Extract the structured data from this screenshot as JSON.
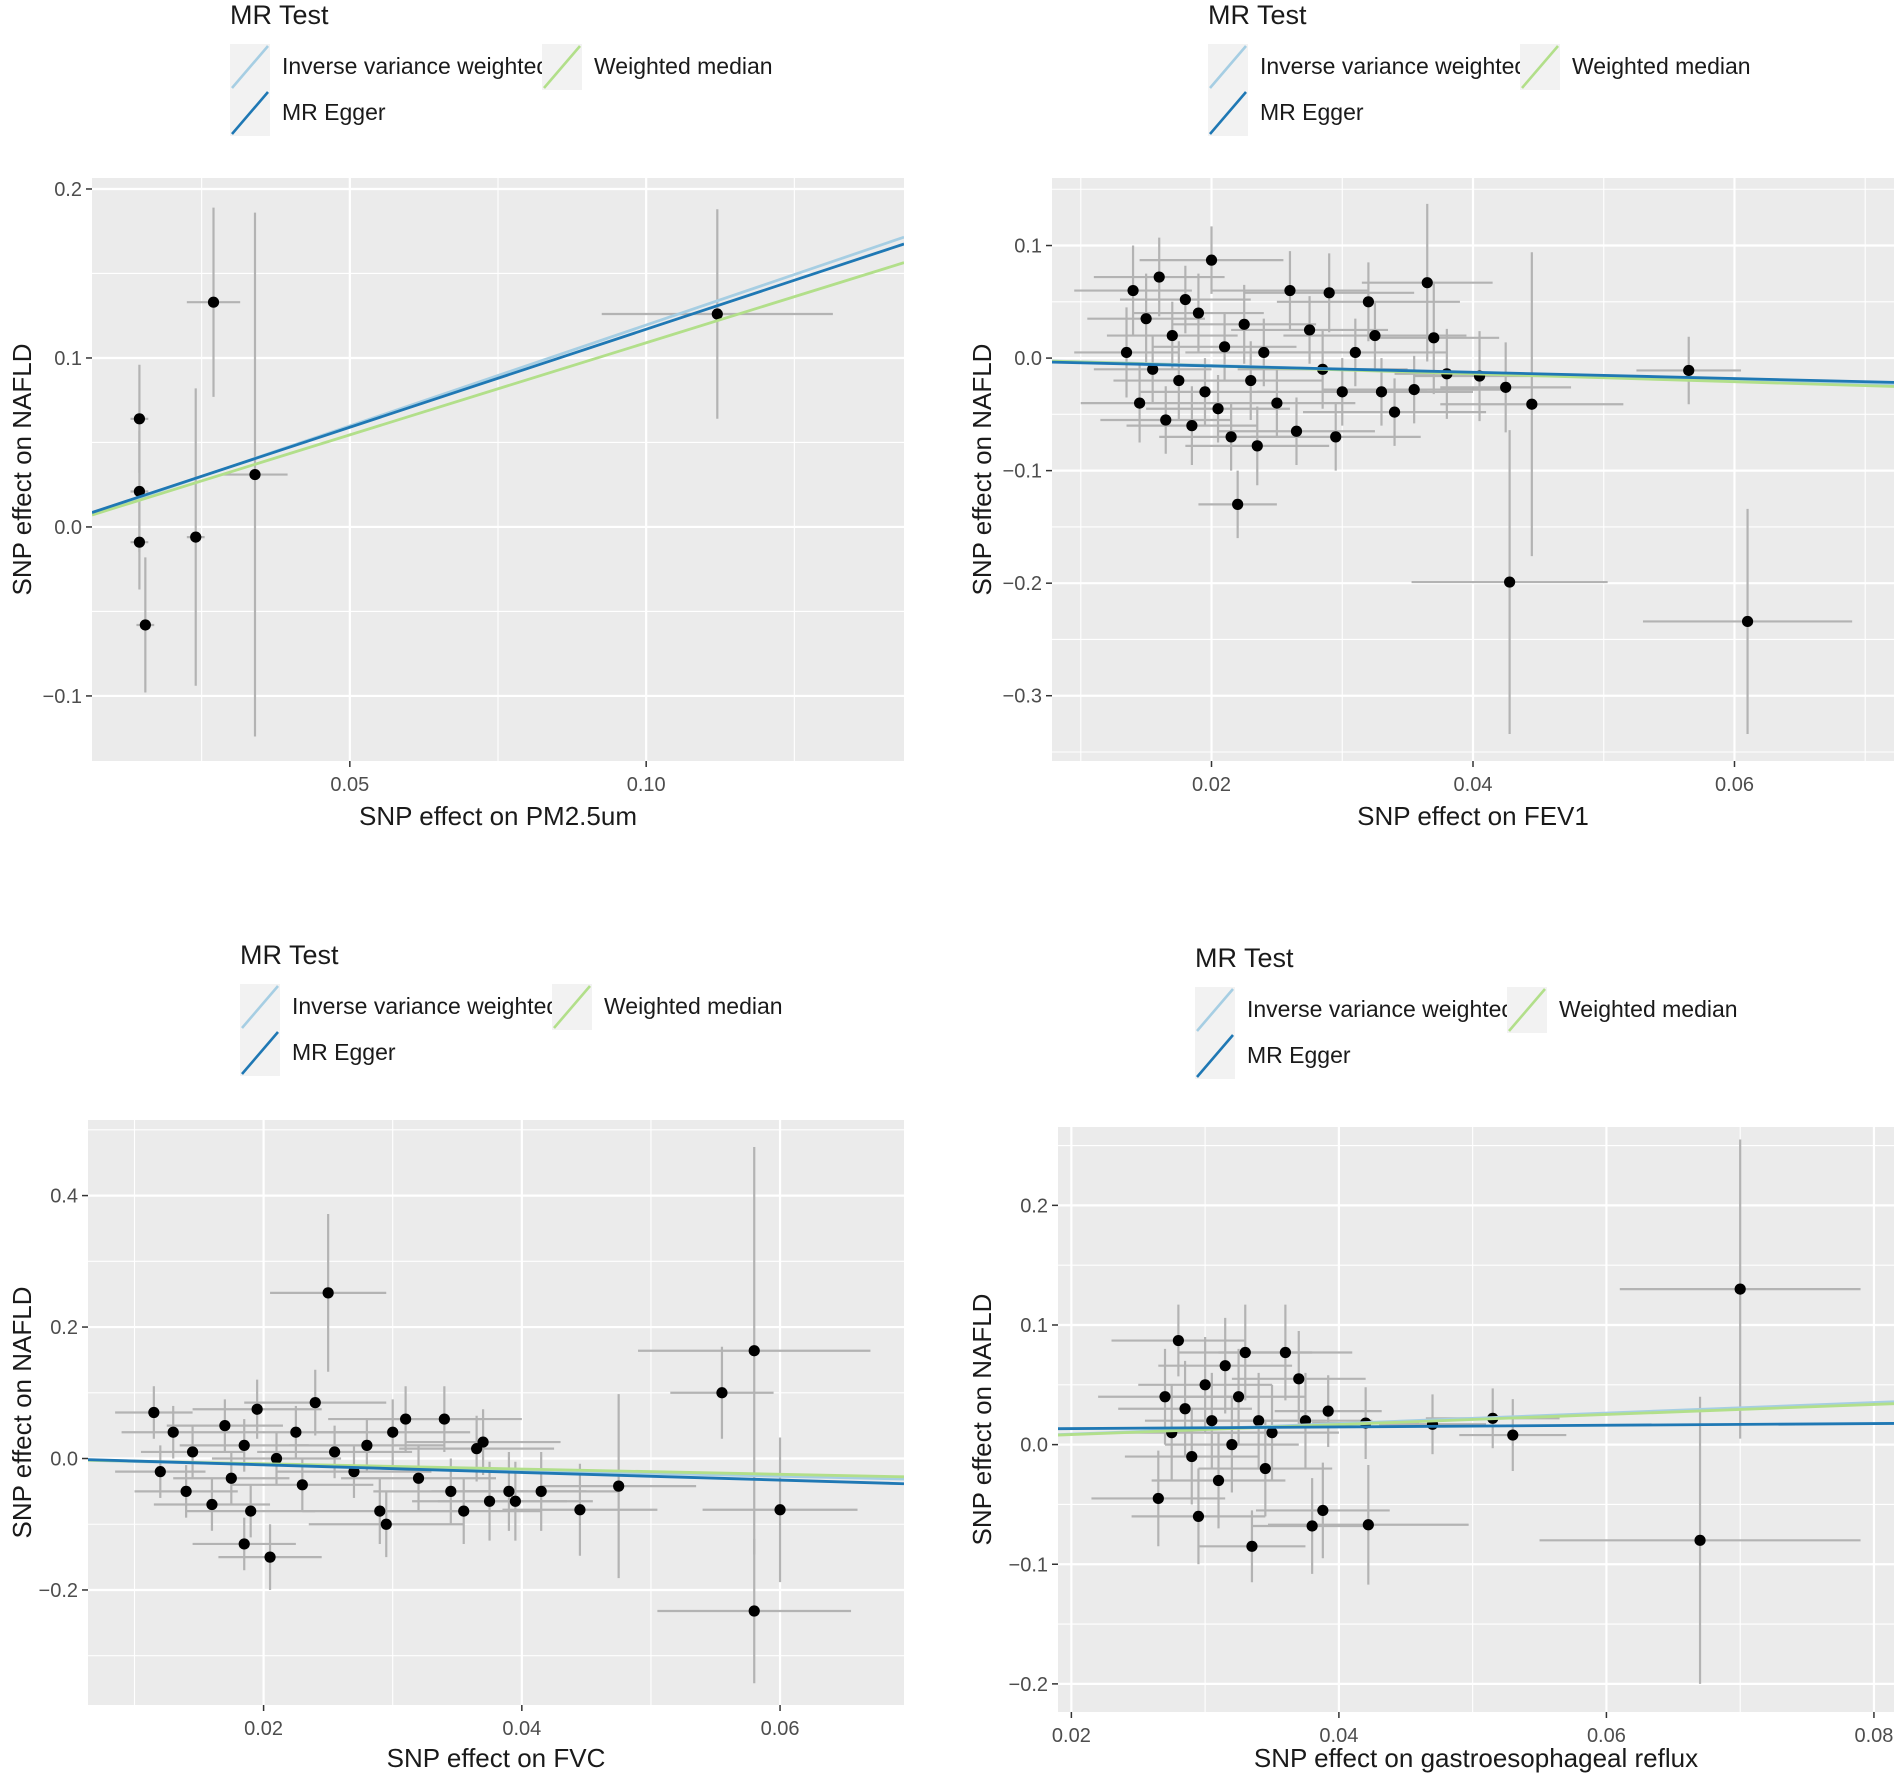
{
  "legend_title": "MR Test",
  "colors": {
    "panel_bg": "#ebebeb",
    "grid": "#ffffff",
    "ivw": "#a6cee3",
    "egger": "#1f78b4",
    "median": "#b2df8a",
    "point": "#000000",
    "errorbar": "#b3b3b3",
    "text": "#1a1a1a",
    "tick_label": "#4d4d4d"
  },
  "chart_data": [
    {
      "type": "scatter",
      "id": "pm25",
      "legend": {
        "title": "MR Test",
        "entries": [
          "Inverse variance weighted",
          "MR Egger",
          "Weighted median"
        ]
      },
      "xlabel": "SNP effect on PM2.5um",
      "ylabel": "SNP effect on NAFLD",
      "xlim": [
        0.0065,
        0.1435
      ],
      "ylim": [
        -0.1385,
        0.2065
      ],
      "xticks": [
        0.05,
        0.1
      ],
      "xtick_labels": [
        "0.05",
        "0.10"
      ],
      "yticks": [
        -0.1,
        0.0,
        0.1,
        0.2
      ],
      "ytick_labels": [
        "−0.1",
        "0.0",
        "0.1",
        "0.2"
      ],
      "lines": [
        {
          "name": "Inverse variance weighted",
          "intercept": 0.0,
          "slope": 1.195
        },
        {
          "name": "Weighted median",
          "intercept": 0.0,
          "slope": 1.09
        },
        {
          "name": "MR Egger",
          "intercept": 0.001,
          "slope": 1.16
        }
      ],
      "points": [
        {
          "x": 0.0145,
          "y": 0.064,
          "xse": 0.0015,
          "yse": 0.032
        },
        {
          "x": 0.0145,
          "y": 0.021,
          "xse": 0.0015,
          "yse": 0.036
        },
        {
          "x": 0.0145,
          "y": -0.009,
          "xse": 0.0015,
          "yse": 0.028
        },
        {
          "x": 0.0155,
          "y": -0.058,
          "xse": 0.0015,
          "yse": 0.04
        },
        {
          "x": 0.024,
          "y": -0.006,
          "xse": 0.0015,
          "yse": 0.088
        },
        {
          "x": 0.027,
          "y": 0.133,
          "xse": 0.0045,
          "yse": 0.056
        },
        {
          "x": 0.034,
          "y": 0.031,
          "xse": 0.0055,
          "yse": 0.155
        },
        {
          "x": 0.112,
          "y": 0.126,
          "xse": 0.0195,
          "yse": 0.062
        }
      ]
    },
    {
      "type": "scatter",
      "id": "fev1",
      "legend": {
        "title": "MR Test",
        "entries": [
          "Inverse variance weighted",
          "MR Egger",
          "Weighted median"
        ]
      },
      "xlabel": "SNP effect on FEV1",
      "ylabel": "SNP effect on NAFLD",
      "xlim": [
        0.0078,
        0.0722
      ],
      "ylim": [
        -0.358,
        0.16
      ],
      "xticks": [
        0.02,
        0.04,
        0.06
      ],
      "xtick_labels": [
        "0.02",
        "0.04",
        "0.06"
      ],
      "yticks": [
        -0.3,
        -0.2,
        -0.1,
        0.0,
        0.1
      ],
      "ytick_labels": [
        "−0.3",
        "−0.2",
        "−0.1",
        "0.0",
        "0.1"
      ],
      "lines": [
        {
          "name": "Inverse variance weighted",
          "intercept": 0.0,
          "slope": -0.33
        },
        {
          "name": "Weighted median",
          "intercept": 0.0,
          "slope": -0.35
        },
        {
          "name": "MR Egger",
          "intercept": -0.0014,
          "slope": -0.28
        }
      ],
      "points": [
        {
          "x": 0.02,
          "y": 0.087,
          "xse": 0.0055,
          "yse": 0.03
        },
        {
          "x": 0.014,
          "y": 0.06,
          "xse": 0.0045,
          "yse": 0.04
        },
        {
          "x": 0.016,
          "y": 0.072,
          "xse": 0.005,
          "yse": 0.035
        },
        {
          "x": 0.018,
          "y": 0.052,
          "xse": 0.005,
          "yse": 0.03
        },
        {
          "x": 0.015,
          "y": 0.035,
          "xse": 0.0045,
          "yse": 0.04
        },
        {
          "x": 0.017,
          "y": 0.02,
          "xse": 0.005,
          "yse": 0.03
        },
        {
          "x": 0.019,
          "y": 0.04,
          "xse": 0.005,
          "yse": 0.035
        },
        {
          "x": 0.021,
          "y": 0.01,
          "xse": 0.0055,
          "yse": 0.03
        },
        {
          "x": 0.0135,
          "y": 0.005,
          "xse": 0.004,
          "yse": 0.04
        },
        {
          "x": 0.0155,
          "y": -0.01,
          "xse": 0.0045,
          "yse": 0.03
        },
        {
          "x": 0.0175,
          "y": -0.02,
          "xse": 0.005,
          "yse": 0.035
        },
        {
          "x": 0.0195,
          "y": -0.03,
          "xse": 0.005,
          "yse": 0.03
        },
        {
          "x": 0.0145,
          "y": -0.04,
          "xse": 0.0045,
          "yse": 0.035
        },
        {
          "x": 0.0165,
          "y": -0.055,
          "xse": 0.005,
          "yse": 0.03
        },
        {
          "x": 0.0185,
          "y": -0.06,
          "xse": 0.005,
          "yse": 0.035
        },
        {
          "x": 0.0205,
          "y": -0.045,
          "xse": 0.0055,
          "yse": 0.03
        },
        {
          "x": 0.0225,
          "y": 0.03,
          "xse": 0.0055,
          "yse": 0.035
        },
        {
          "x": 0.024,
          "y": 0.005,
          "xse": 0.006,
          "yse": 0.03
        },
        {
          "x": 0.023,
          "y": -0.02,
          "xse": 0.0055,
          "yse": 0.035
        },
        {
          "x": 0.025,
          "y": -0.04,
          "xse": 0.006,
          "yse": 0.03
        },
        {
          "x": 0.0215,
          "y": -0.07,
          "xse": 0.0055,
          "yse": 0.03
        },
        {
          "x": 0.0235,
          "y": -0.078,
          "xse": 0.0055,
          "yse": 0.035
        },
        {
          "x": 0.022,
          "y": -0.13,
          "xse": 0.003,
          "yse": 0.03
        },
        {
          "x": 0.026,
          "y": 0.06,
          "xse": 0.006,
          "yse": 0.035
        },
        {
          "x": 0.0275,
          "y": 0.025,
          "xse": 0.006,
          "yse": 0.03
        },
        {
          "x": 0.0285,
          "y": -0.01,
          "xse": 0.0065,
          "yse": 0.035
        },
        {
          "x": 0.0265,
          "y": -0.065,
          "xse": 0.006,
          "yse": 0.03
        },
        {
          "x": 0.029,
          "y": 0.058,
          "xse": 0.0065,
          "yse": 0.035
        },
        {
          "x": 0.03,
          "y": -0.03,
          "xse": 0.0065,
          "yse": 0.03
        },
        {
          "x": 0.0295,
          "y": -0.07,
          "xse": 0.0065,
          "yse": 0.03
        },
        {
          "x": 0.031,
          "y": 0.005,
          "xse": 0.007,
          "yse": 0.03
        },
        {
          "x": 0.032,
          "y": 0.05,
          "xse": 0.007,
          "yse": 0.035
        },
        {
          "x": 0.0325,
          "y": 0.02,
          "xse": 0.007,
          "yse": 0.03
        },
        {
          "x": 0.033,
          "y": -0.03,
          "xse": 0.007,
          "yse": 0.03
        },
        {
          "x": 0.034,
          "y": -0.048,
          "xse": 0.007,
          "yse": 0.03
        },
        {
          "x": 0.0355,
          "y": -0.028,
          "xse": 0.007,
          "yse": 0.03
        },
        {
          "x": 0.0365,
          "y": 0.067,
          "xse": 0.005,
          "yse": 0.07
        },
        {
          "x": 0.037,
          "y": 0.018,
          "xse": 0.005,
          "yse": 0.05
        },
        {
          "x": 0.038,
          "y": -0.014,
          "xse": 0.004,
          "yse": 0.04
        },
        {
          "x": 0.0405,
          "y": -0.016,
          "xse": 0.005,
          "yse": 0.04
        },
        {
          "x": 0.0425,
          "y": -0.026,
          "xse": 0.005,
          "yse": 0.04
        },
        {
          "x": 0.0445,
          "y": -0.041,
          "xse": 0.007,
          "yse": 0.135
        },
        {
          "x": 0.0428,
          "y": -0.199,
          "xse": 0.0075,
          "yse": 0.135
        },
        {
          "x": 0.0565,
          "y": -0.011,
          "xse": 0.004,
          "yse": 0.03
        },
        {
          "x": 0.061,
          "y": -0.234,
          "xse": 0.008,
          "yse": 0.1
        }
      ]
    },
    {
      "type": "scatter",
      "id": "fvc",
      "legend": {
        "title": "MR Test",
        "entries": [
          "Inverse variance weighted",
          "MR Egger",
          "Weighted median"
        ]
      },
      "xlabel": "SNP effect on FVC",
      "ylabel": "SNP effect on NAFLD",
      "xlim": [
        0.0064,
        0.0696
      ],
      "ylim": [
        -0.375,
        0.515
      ],
      "xticks": [
        0.02,
        0.04,
        0.06
      ],
      "xtick_labels": [
        "0.02",
        "0.04",
        "0.06"
      ],
      "yticks": [
        -0.2,
        0.0,
        0.2,
        0.4
      ],
      "ytick_labels": [
        "−0.2",
        "0.0",
        "0.2",
        "0.4"
      ],
      "lines": [
        {
          "name": "Inverse variance weighted",
          "intercept": 0.0,
          "slope": -0.45
        },
        {
          "name": "Weighted median",
          "intercept": 0.0,
          "slope": -0.4
        },
        {
          "name": "MR Egger",
          "intercept": 0.002,
          "slope": -0.58
        }
      ],
      "points": [
        {
          "x": 0.0115,
          "y": 0.07,
          "xse": 0.003,
          "yse": 0.04
        },
        {
          "x": 0.013,
          "y": 0.04,
          "xse": 0.004,
          "yse": 0.04
        },
        {
          "x": 0.0145,
          "y": 0.01,
          "xse": 0.004,
          "yse": 0.04
        },
        {
          "x": 0.012,
          "y": -0.02,
          "xse": 0.0035,
          "yse": 0.04
        },
        {
          "x": 0.014,
          "y": -0.05,
          "xse": 0.004,
          "yse": 0.04
        },
        {
          "x": 0.016,
          "y": -0.07,
          "xse": 0.0045,
          "yse": 0.04
        },
        {
          "x": 0.017,
          "y": 0.05,
          "xse": 0.0045,
          "yse": 0.04
        },
        {
          "x": 0.0185,
          "y": 0.02,
          "xse": 0.005,
          "yse": 0.04
        },
        {
          "x": 0.0195,
          "y": 0.075,
          "xse": 0.005,
          "yse": 0.045
        },
        {
          "x": 0.0175,
          "y": -0.03,
          "xse": 0.0045,
          "yse": 0.04
        },
        {
          "x": 0.019,
          "y": -0.08,
          "xse": 0.005,
          "yse": 0.04
        },
        {
          "x": 0.0185,
          "y": -0.13,
          "xse": 0.004,
          "yse": 0.04
        },
        {
          "x": 0.0205,
          "y": -0.15,
          "xse": 0.004,
          "yse": 0.05
        },
        {
          "x": 0.021,
          "y": 0.0,
          "xse": 0.005,
          "yse": 0.04
        },
        {
          "x": 0.0225,
          "y": 0.04,
          "xse": 0.0055,
          "yse": 0.04
        },
        {
          "x": 0.023,
          "y": -0.04,
          "xse": 0.0055,
          "yse": 0.04
        },
        {
          "x": 0.024,
          "y": 0.085,
          "xse": 0.0055,
          "yse": 0.05
        },
        {
          "x": 0.025,
          "y": 0.252,
          "xse": 0.0045,
          "yse": 0.12
        },
        {
          "x": 0.0255,
          "y": 0.01,
          "xse": 0.006,
          "yse": 0.04
        },
        {
          "x": 0.027,
          "y": -0.02,
          "xse": 0.006,
          "yse": 0.04
        },
        {
          "x": 0.028,
          "y": 0.02,
          "xse": 0.006,
          "yse": 0.04
        },
        {
          "x": 0.029,
          "y": -0.08,
          "xse": 0.006,
          "yse": 0.05
        },
        {
          "x": 0.0295,
          "y": -0.1,
          "xse": 0.006,
          "yse": 0.05
        },
        {
          "x": 0.03,
          "y": 0.04,
          "xse": 0.006,
          "yse": 0.05
        },
        {
          "x": 0.031,
          "y": 0.06,
          "xse": 0.006,
          "yse": 0.05
        },
        {
          "x": 0.032,
          "y": -0.03,
          "xse": 0.006,
          "yse": 0.05
        },
        {
          "x": 0.034,
          "y": 0.06,
          "xse": 0.006,
          "yse": 0.05
        },
        {
          "x": 0.0345,
          "y": -0.05,
          "xse": 0.006,
          "yse": 0.05
        },
        {
          "x": 0.0355,
          "y": -0.08,
          "xse": 0.006,
          "yse": 0.05
        },
        {
          "x": 0.0365,
          "y": 0.015,
          "xse": 0.006,
          "yse": 0.05
        },
        {
          "x": 0.037,
          "y": 0.025,
          "xse": 0.006,
          "yse": 0.05
        },
        {
          "x": 0.0375,
          "y": -0.065,
          "xse": 0.006,
          "yse": 0.06
        },
        {
          "x": 0.039,
          "y": -0.05,
          "xse": 0.006,
          "yse": 0.06
        },
        {
          "x": 0.0395,
          "y": -0.065,
          "xse": 0.006,
          "yse": 0.06
        },
        {
          "x": 0.0415,
          "y": -0.05,
          "xse": 0.006,
          "yse": 0.06
        },
        {
          "x": 0.0445,
          "y": -0.078,
          "xse": 0.006,
          "yse": 0.07
        },
        {
          "x": 0.0475,
          "y": -0.042,
          "xse": 0.006,
          "yse": 0.14
        },
        {
          "x": 0.0555,
          "y": 0.1,
          "xse": 0.004,
          "yse": 0.07
        },
        {
          "x": 0.058,
          "y": 0.164,
          "xse": 0.009,
          "yse": 0.31
        },
        {
          "x": 0.06,
          "y": -0.078,
          "xse": 0.006,
          "yse": 0.11
        },
        {
          "x": 0.058,
          "y": -0.232,
          "xse": 0.0075,
          "yse": 0.11
        }
      ]
    },
    {
      "type": "scatter",
      "id": "gerd",
      "legend": {
        "title": "MR Test",
        "entries": [
          "Inverse variance weighted",
          "MR Egger",
          "Weighted median"
        ]
      },
      "xlabel": "SNP effect on gastroesophageal reflux",
      "ylabel": "SNP effect on NAFLD",
      "xlim": [
        0.019,
        0.0815
      ],
      "ylim": [
        -0.2235,
        0.2655
      ],
      "xticks": [
        0.02,
        0.04,
        0.06,
        0.08
      ],
      "xtick_labels": [
        "0.02",
        "0.04",
        "0.06",
        "0.08"
      ],
      "yticks": [
        -0.2,
        -0.1,
        0.0,
        0.1,
        0.2
      ],
      "ytick_labels": [
        "−0.2",
        "−0.1",
        "0.0",
        "0.1",
        "0.2"
      ],
      "lines": [
        {
          "name": "Inverse variance weighted",
          "intercept": 0.0,
          "slope": 0.44
        },
        {
          "name": "Weighted median",
          "intercept": 0.0,
          "slope": 0.42
        },
        {
          "name": "MR Egger",
          "intercept": 0.012,
          "slope": 0.07
        }
      ],
      "points": [
        {
          "x": 0.028,
          "y": 0.087,
          "xse": 0.005,
          "yse": 0.03
        },
        {
          "x": 0.027,
          "y": 0.04,
          "xse": 0.005,
          "yse": 0.04
        },
        {
          "x": 0.0275,
          "y": 0.01,
          "xse": 0.005,
          "yse": 0.04
        },
        {
          "x": 0.0265,
          "y": -0.045,
          "xse": 0.005,
          "yse": 0.04
        },
        {
          "x": 0.0285,
          "y": 0.03,
          "xse": 0.005,
          "yse": 0.04
        },
        {
          "x": 0.029,
          "y": -0.01,
          "xse": 0.005,
          "yse": 0.04
        },
        {
          "x": 0.0295,
          "y": -0.06,
          "xse": 0.005,
          "yse": 0.04
        },
        {
          "x": 0.03,
          "y": 0.05,
          "xse": 0.005,
          "yse": 0.04
        },
        {
          "x": 0.0305,
          "y": 0.02,
          "xse": 0.005,
          "yse": 0.04
        },
        {
          "x": 0.031,
          "y": -0.03,
          "xse": 0.005,
          "yse": 0.04
        },
        {
          "x": 0.0315,
          "y": 0.066,
          "xse": 0.005,
          "yse": 0.04
        },
        {
          "x": 0.032,
          "y": 0.0,
          "xse": 0.005,
          "yse": 0.04
        },
        {
          "x": 0.0325,
          "y": 0.04,
          "xse": 0.005,
          "yse": 0.04
        },
        {
          "x": 0.033,
          "y": 0.077,
          "xse": 0.005,
          "yse": 0.04
        },
        {
          "x": 0.0335,
          "y": -0.085,
          "xse": 0.004,
          "yse": 0.03
        },
        {
          "x": 0.034,
          "y": 0.02,
          "xse": 0.005,
          "yse": 0.04
        },
        {
          "x": 0.0345,
          "y": -0.02,
          "xse": 0.005,
          "yse": 0.04
        },
        {
          "x": 0.035,
          "y": 0.01,
          "xse": 0.005,
          "yse": 0.04
        },
        {
          "x": 0.036,
          "y": 0.077,
          "xse": 0.005,
          "yse": 0.04
        },
        {
          "x": 0.037,
          "y": 0.055,
          "xse": 0.005,
          "yse": 0.04
        },
        {
          "x": 0.0375,
          "y": 0.02,
          "xse": 0.005,
          "yse": 0.04
        },
        {
          "x": 0.038,
          "y": -0.068,
          "xse": 0.0045,
          "yse": 0.04
        },
        {
          "x": 0.0388,
          "y": -0.055,
          "xse": 0.005,
          "yse": 0.04
        },
        {
          "x": 0.0392,
          "y": 0.028,
          "xse": 0.004,
          "yse": 0.03
        },
        {
          "x": 0.042,
          "y": 0.018,
          "xse": 0.004,
          "yse": 0.03
        },
        {
          "x": 0.0422,
          "y": -0.067,
          "xse": 0.0075,
          "yse": 0.05
        },
        {
          "x": 0.047,
          "y": 0.017,
          "xse": 0.004,
          "yse": 0.025
        },
        {
          "x": 0.0515,
          "y": 0.022,
          "xse": 0.005,
          "yse": 0.025
        },
        {
          "x": 0.053,
          "y": 0.008,
          "xse": 0.004,
          "yse": 0.03
        },
        {
          "x": 0.07,
          "y": 0.13,
          "xse": 0.009,
          "yse": 0.125
        },
        {
          "x": 0.067,
          "y": -0.08,
          "xse": 0.012,
          "yse": 0.12
        }
      ]
    }
  ]
}
